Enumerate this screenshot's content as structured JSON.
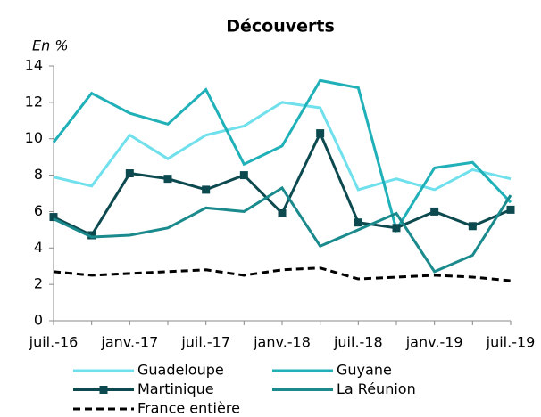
{
  "chart_data": {
    "type": "line",
    "title": "Découverts",
    "y_label": "En %",
    "categories": [
      "juil.-16",
      null,
      "janv.-17",
      null,
      "juil.-17",
      null,
      "janv.-18",
      null,
      "juil.-18",
      null,
      "janv.-19",
      null,
      "juil.-19"
    ],
    "ylim": [
      0,
      14
    ],
    "yticks": [
      0,
      2,
      4,
      6,
      8,
      10,
      12,
      14
    ],
    "grid": false,
    "series": [
      {
        "name": "Guadeloupe",
        "color": "#6fe0ec",
        "values": [
          7.9,
          7.4,
          10.2,
          8.9,
          10.2,
          10.7,
          12.0,
          11.7,
          7.2,
          7.8,
          7.2,
          8.3,
          7.8
        ]
      },
      {
        "name": "Guyane",
        "color": "#1fb0b8",
        "values": [
          9.8,
          12.5,
          11.4,
          10.8,
          12.7,
          8.6,
          9.6,
          13.2,
          12.8,
          5.0,
          8.4,
          8.7,
          6.5
        ]
      },
      {
        "name": "Martinique",
        "color": "#0d4a50",
        "marker": "square",
        "values": [
          5.7,
          4.7,
          8.1,
          7.8,
          7.2,
          8.0,
          5.9,
          10.3,
          5.4,
          5.1,
          6.0,
          5.2,
          6.1
        ]
      },
      {
        "name": "La Réunion",
        "color": "#1a8a8c",
        "values": [
          5.6,
          4.6,
          4.7,
          5.1,
          6.2,
          6.0,
          7.3,
          4.1,
          5.0,
          5.9,
          2.7,
          3.6,
          6.9
        ]
      },
      {
        "name": "France entière",
        "color": "#000000",
        "dash": true,
        "values": [
          2.7,
          2.5,
          2.6,
          2.7,
          2.8,
          2.5,
          2.8,
          2.9,
          2.3,
          2.4,
          2.5,
          2.4,
          2.2
        ]
      }
    ]
  }
}
